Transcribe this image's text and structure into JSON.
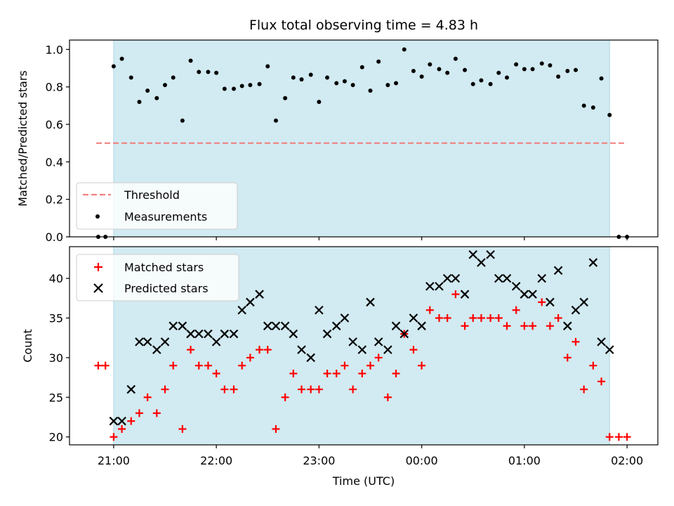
{
  "chart_data": {
    "type": "scatter",
    "title": "Flux total observing time = 4.83 h",
    "xlabel": "Time (UTC)",
    "x_ticks": [
      "21:00",
      "22:00",
      "23:00",
      "00:00",
      "01:00",
      "02:00"
    ],
    "x_tick_hours": [
      0,
      1,
      2,
      3,
      4,
      5
    ],
    "x_range_hours_after_21": [
      -0.43,
      5.3
    ],
    "shaded_span_hours_after_21": [
      0.0,
      4.83
    ],
    "shade_color": "#add8e6",
    "panels": [
      {
        "name": "ratio",
        "ylabel": "Matched/Predicted stars",
        "ylim": [
          0.0,
          1.05
        ],
        "y_ticks": [
          0.0,
          0.2,
          0.4,
          0.6,
          0.8,
          1.0
        ],
        "y_tick_labels": [
          "0.0",
          "0.2",
          "0.4",
          "0.6",
          "0.8",
          "1.0"
        ],
        "threshold": {
          "name": "Threshold",
          "value": 0.5,
          "x_from": -0.17,
          "x_to": 5.0,
          "color": "#f08080"
        },
        "series": [
          {
            "name": "Measurements",
            "marker": "dot",
            "color": "#000000",
            "x": [
              -0.15,
              -0.08,
              0.0,
              0.08,
              0.17,
              0.25,
              0.33,
              0.42,
              0.5,
              0.58,
              0.67,
              0.75,
              0.83,
              0.92,
              1.0,
              1.08,
              1.17,
              1.25,
              1.33,
              1.42,
              1.5,
              1.58,
              1.67,
              1.75,
              1.83,
              1.92,
              2.0,
              2.08,
              2.17,
              2.25,
              2.33,
              2.42,
              2.5,
              2.58,
              2.67,
              2.75,
              2.83,
              2.92,
              3.0,
              3.08,
              3.17,
              3.25,
              3.33,
              3.42,
              3.5,
              3.58,
              3.67,
              3.75,
              3.83,
              3.92,
              4.0,
              4.08,
              4.17,
              4.25,
              4.33,
              4.42,
              4.5,
              4.58,
              4.67,
              4.75,
              4.83,
              4.92,
              5.0
            ],
            "y": [
              0.0,
              0.0,
              0.91,
              0.95,
              0.85,
              0.72,
              0.78,
              0.74,
              0.81,
              0.85,
              0.62,
              0.94,
              0.88,
              0.88,
              0.875,
              0.79,
              0.79,
              0.805,
              0.81,
              0.815,
              0.91,
              0.62,
              0.74,
              0.85,
              0.84,
              0.865,
              0.72,
              0.85,
              0.82,
              0.83,
              0.81,
              0.905,
              0.78,
              0.935,
              0.81,
              0.82,
              1.0,
              0.885,
              0.855,
              0.92,
              0.895,
              0.875,
              0.95,
              0.89,
              0.815,
              0.835,
              0.815,
              0.875,
              0.85,
              0.92,
              0.895,
              0.895,
              0.925,
              0.915,
              0.855,
              0.885,
              0.89,
              0.7,
              0.69,
              0.845,
              0.65,
              0.0,
              0.0
            ]
          }
        ],
        "legend": {
          "placement": "lower-left",
          "entries": [
            "Threshold",
            "Measurements"
          ]
        }
      },
      {
        "name": "count",
        "ylabel": "Count",
        "ylim": [
          19,
          44
        ],
        "y_ticks": [
          20,
          25,
          30,
          35,
          40
        ],
        "y_tick_labels": [
          "20",
          "25",
          "30",
          "35",
          "40"
        ],
        "series": [
          {
            "name": "Matched stars",
            "marker": "plus",
            "color": "#ff0000",
            "x": [
              -0.15,
              -0.08,
              0.0,
              0.08,
              0.17,
              0.25,
              0.33,
              0.42,
              0.5,
              0.58,
              0.67,
              0.75,
              0.83,
              0.92,
              1.0,
              1.08,
              1.17,
              1.25,
              1.33,
              1.42,
              1.5,
              1.58,
              1.67,
              1.75,
              1.83,
              1.92,
              2.0,
              2.08,
              2.17,
              2.25,
              2.33,
              2.42,
              2.5,
              2.58,
              2.67,
              2.75,
              2.83,
              2.92,
              3.0,
              3.08,
              3.17,
              3.25,
              3.33,
              3.42,
              3.5,
              3.58,
              3.67,
              3.75,
              3.83,
              3.92,
              4.0,
              4.08,
              4.17,
              4.25,
              4.33,
              4.42,
              4.5,
              4.58,
              4.67,
              4.75,
              4.83,
              4.92,
              5.0
            ],
            "y": [
              29,
              29,
              20,
              21,
              22,
              23,
              25,
              23,
              26,
              29,
              21,
              31,
              29,
              29,
              28,
              26,
              26,
              29,
              30,
              31,
              31,
              21,
              25,
              28,
              26,
              26,
              26,
              28,
              28,
              29,
              26,
              28,
              29,
              30,
              25,
              28,
              33,
              31,
              29,
              36,
              35,
              35,
              38,
              34,
              35,
              35,
              35,
              35,
              34,
              36,
              34,
              34,
              37,
              34,
              35,
              30,
              32,
              26,
              29,
              27,
              20,
              20,
              20
            ]
          },
          {
            "name": "Predicted stars",
            "marker": "x",
            "color": "#000000",
            "x": [
              0.0,
              0.08,
              0.17,
              0.25,
              0.33,
              0.42,
              0.5,
              0.58,
              0.67,
              0.75,
              0.83,
              0.92,
              1.0,
              1.08,
              1.17,
              1.25,
              1.33,
              1.42,
              1.5,
              1.58,
              1.67,
              1.75,
              1.83,
              1.92,
              2.0,
              2.08,
              2.17,
              2.25,
              2.33,
              2.42,
              2.5,
              2.58,
              2.67,
              2.75,
              2.83,
              2.92,
              3.0,
              3.08,
              3.17,
              3.25,
              3.33,
              3.42,
              3.5,
              3.58,
              3.67,
              3.75,
              3.83,
              3.92,
              4.0,
              4.08,
              4.17,
              4.25,
              4.33,
              4.42,
              4.5,
              4.58,
              4.67,
              4.75,
              4.83
            ],
            "y": [
              22,
              22,
              26,
              32,
              32,
              31,
              32,
              34,
              34,
              33,
              33,
              33,
              32,
              33,
              33,
              36,
              37,
              38,
              34,
              34,
              34,
              33,
              31,
              30,
              36,
              33,
              34,
              35,
              32,
              31,
              37,
              32,
              31,
              34,
              33,
              35,
              34,
              39,
              39,
              40,
              40,
              38,
              43,
              42,
              43,
              40,
              40,
              39,
              38,
              38,
              40,
              37,
              41,
              34,
              36,
              37,
              42,
              32,
              31
            ]
          }
        ],
        "legend": {
          "placement": "upper-left",
          "entries": [
            "Matched stars",
            "Predicted stars"
          ]
        }
      }
    ]
  }
}
